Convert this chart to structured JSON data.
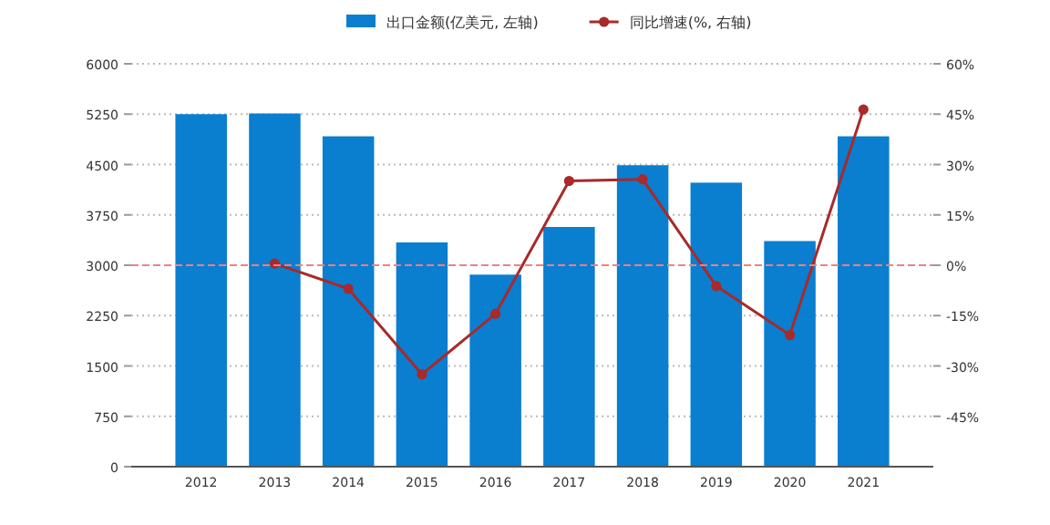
{
  "chart_data": {
    "type": "bar",
    "categories": [
      "2012",
      "2013",
      "2014",
      "2015",
      "2016",
      "2017",
      "2018",
      "2019",
      "2020",
      "2021"
    ],
    "series": [
      {
        "name": "出口金额(亿美元, 左轴)",
        "color": "#0a7ecf",
        "values": [
          5250,
          5260,
          4920,
          3340,
          2860,
          3570,
          4490,
          4230,
          3360,
          4920
        ]
      },
      {
        "name": "同比增速(%, 右轴)",
        "type": "line",
        "axis": "y2",
        "color": "#a82a2a",
        "marker": "circle",
        "values": [
          null,
          0.5,
          -7.0,
          -32.5,
          -14.5,
          25.1,
          25.6,
          -6.2,
          -20.8,
          46.4
        ]
      }
    ],
    "ylim": [
      0,
      6000
    ],
    "yticks": [
      0,
      750,
      1500,
      2250,
      3000,
      3750,
      4500,
      5250,
      6000
    ],
    "y2lim": [
      -60,
      60
    ],
    "y2ticks": [
      {
        "value": -45,
        "label": "-45%"
      },
      {
        "value": -30,
        "label": "-30%"
      },
      {
        "value": -15,
        "label": "-15%"
      },
      {
        "value": 0,
        "label": "0%"
      },
      {
        "value": 15,
        "label": "15%"
      },
      {
        "value": 30,
        "label": "30%"
      },
      {
        "value": 45,
        "label": "45%"
      },
      {
        "value": 60,
        "label": "60%"
      }
    ],
    "ref_lines": [
      {
        "axis": "y2",
        "value": 0,
        "color": "#f08080",
        "line_style": "dashed"
      }
    ],
    "grid": "y",
    "legend": "top"
  }
}
